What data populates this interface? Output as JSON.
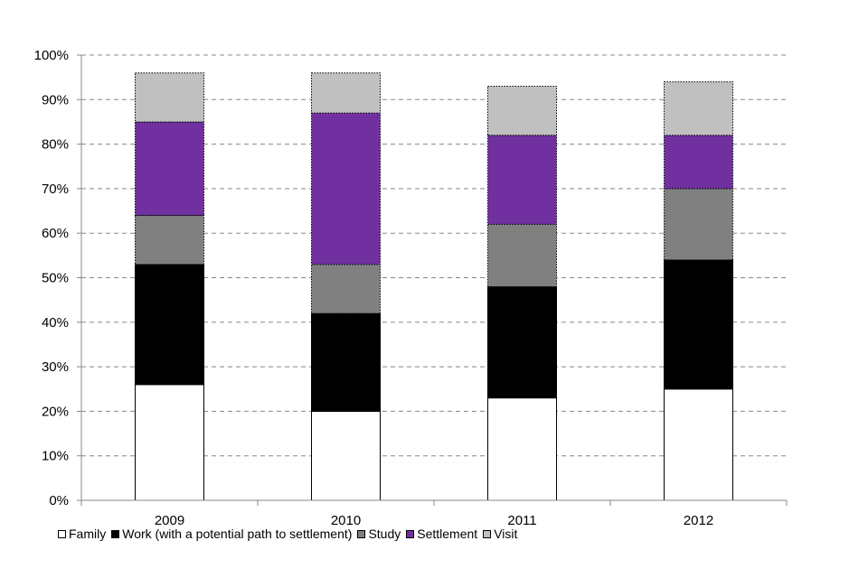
{
  "chart_data": {
    "type": "bar",
    "stacked": true,
    "categories": [
      "2009",
      "2010",
      "2011",
      "2012"
    ],
    "series": [
      {
        "name": "Family",
        "color": "#ffffff",
        "values": [
          26,
          20,
          23,
          25
        ]
      },
      {
        "name": "Work (with a potential path to settlement)",
        "color": "#000000",
        "values": [
          27,
          22,
          25,
          29
        ]
      },
      {
        "name": "Study",
        "color": "#808080",
        "values": [
          11,
          11,
          14,
          16
        ]
      },
      {
        "name": "Settlement",
        "color": "#7030a0",
        "values": [
          21,
          34,
          20,
          12
        ]
      },
      {
        "name": "Visit",
        "color": "#c0c0c0",
        "values": [
          11,
          9,
          11,
          12
        ]
      }
    ],
    "ylim": [
      0,
      100
    ],
    "yticks": [
      "0%",
      "10%",
      "20%",
      "30%",
      "40%",
      "50%",
      "60%",
      "70%",
      "80%",
      "90%",
      "100%"
    ],
    "grid": "horizontal dashed",
    "legend": "bottom",
    "title": "",
    "xlabel": "",
    "ylabel": ""
  }
}
